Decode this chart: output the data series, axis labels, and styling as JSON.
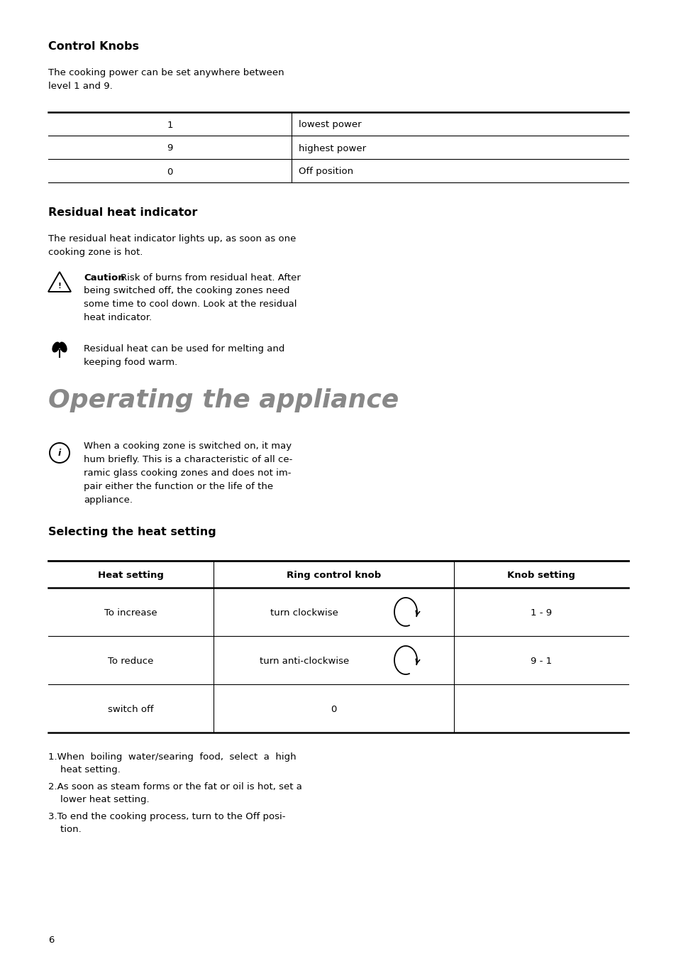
{
  "bg_color": "#ffffff",
  "text_color": "#000000",
  "gray_title_color": "#888888",
  "section1_title": "Control Knobs",
  "section1_body": "The cooking power can be set anywhere between\nlevel 1 and 9.",
  "table1_rows": [
    [
      "1",
      "lowest power"
    ],
    [
      "9",
      "highest power"
    ],
    [
      "0",
      "Off position"
    ]
  ],
  "section2_title": "Residual heat indicator",
  "section2_body": "The residual heat indicator lights up, as soon as one\ncooking zone is hot.",
  "caution_bold": "Caution",
  "caution_text": "Risk of burns from residual heat. After\nbeing switched off, the cooking zones need\nsome time to cool down. Look at the residual\nheat indicator.",
  "note_text": "Residual heat can be used for melting and\nkeeping food warm.",
  "big_title": "Operating the appliance",
  "info_text": "When a cooking zone is switched on, it may\nhum briefly. This is a characteristic of all ce-\nramic glass cooking zones and does not im-\npair either the function or the life of the\nappliance.",
  "section3_title": "Selecting the heat setting",
  "table2_headers": [
    "Heat setting",
    "Ring control knob",
    "Knob setting"
  ],
  "table2_rows": [
    [
      "To increase",
      "turn clockwise",
      "1 - 9"
    ],
    [
      "To reduce",
      "turn anti-clockwise",
      "9 - 1"
    ],
    [
      "switch off",
      "0",
      ""
    ]
  ],
  "footnote1a": "1.When  boiling  water/searing  food,  select  a  high",
  "footnote1b": "    heat setting.",
  "footnote2a": "2.As soon as steam forms or the fat or oil is hot, set a",
  "footnote2b": "    lower heat setting.",
  "footnote3a": "3.To end the cooking process, turn to the Off posi-",
  "footnote3b": "    tion.",
  "page_number": "6"
}
